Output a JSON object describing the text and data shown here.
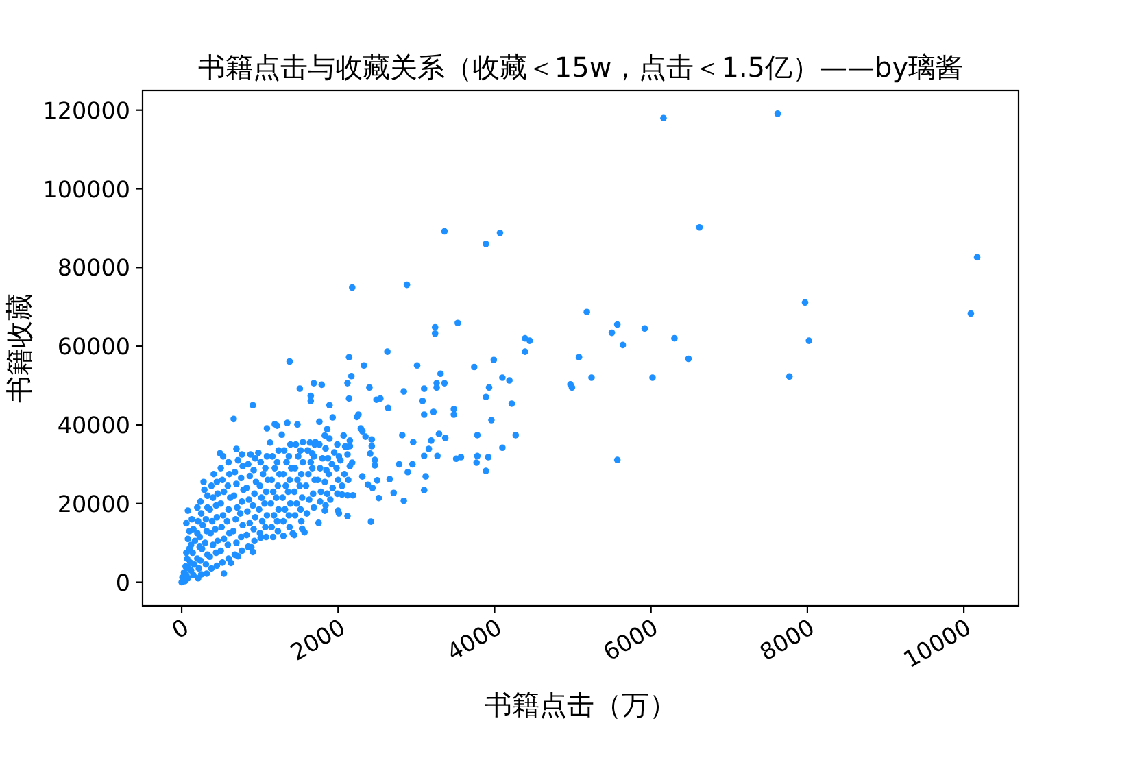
{
  "chart_data": {
    "type": "scatter",
    "title": "书籍点击与收藏关系（收藏＜15w，点击＜1.5亿）——by璃酱",
    "xlabel": "书籍点击（万）",
    "ylabel": "书籍收藏",
    "color": "#1e90ff",
    "marker": "circle",
    "xlim": [
      -500,
      10700
    ],
    "ylim": [
      -6000,
      125000
    ],
    "xticks": [
      0,
      2000,
      4000,
      6000,
      8000,
      10000
    ],
    "yticks": [
      0,
      20000,
      40000,
      60000,
      80000,
      100000,
      120000
    ],
    "x": [
      6160,
      7620,
      6620,
      10170,
      10090,
      7970,
      8020,
      7770,
      5180,
      5570,
      5500,
      5640,
      5920,
      6300,
      6480,
      6020,
      5080,
      5240,
      4970,
      4990,
      5570,
      3360,
      4070,
      3890,
      2880,
      2180,
      3530,
      3240,
      3240,
      4390,
      4450,
      4390,
      2630,
      2140,
      1380,
      3990,
      3010,
      2330,
      3740,
      4100,
      4190,
      3310,
      2170,
      2120,
      1690,
      1790,
      1510,
      2400,
      3100,
      3260,
      3260,
      3360,
      3930,
      2840,
      2140,
      1650,
      1650,
      2490,
      2540,
      3080,
      3890,
      4220,
      910,
      1890,
      2640,
      3220,
      3480,
      3480,
      2260,
      665,
      1760,
      1930,
      3960,
      1090,
      1220,
      1350,
      1480,
      2820,
      3780,
      4270,
      3290,
      3370,
      3190,
      2960,
      3100,
      3270,
      3510,
      3570,
      3780,
      3770,
      3920,
      4100,
      3890,
      2780,
      2890,
      3120,
      2660,
      3100,
      2710,
      2840,
      2520,
      2500,
      2380,
      2420,
      2310,
      2470,
      2470,
      2430,
      2430,
      2310,
      2150,
      2150,
      2120,
      2190,
      2120,
      2010,
      2000,
      1750,
      1440,
      1570,
      1170,
      910,
      540,
      3160,
      3100,
      2950,
      2440,
      2410,
      2350,
      2290,
      2240,
      2180,
      2050,
      2070,
      2110,
      1830,
      1860,
      1710,
      1550,
      1670,
      1540,
      1420,
      1300,
      1010,
      890,
      720,
      630,
      250,
      0,
      1830,
      1770,
      80,
      280,
      490,
      700,
      980,
      1190,
      30,
      10,
      50,
      80,
      90,
      70,
      100,
      80,
      150,
      160,
      140,
      170,
      150,
      130,
      240,
      260,
      230,
      270,
      250,
      240,
      290,
      380,
      360,
      400,
      370,
      390,
      360,
      400,
      380,
      410,
      520,
      500,
      540,
      510,
      530,
      500,
      540,
      520,
      500,
      530,
      680,
      700,
      660,
      690,
      710,
      670,
      700,
      680,
      720,
      850,
      830,
      870,
      840,
      860,
      830,
      870,
      850,
      880,
      1000,
      1030,
      990,
      1020,
      1000,
      1040,
      1010,
      1150,
      1180,
      1140,
      1170,
      1150,
      1190,
      1160,
      1130,
      1300,
      1320,
      1290,
      1330,
      1300,
      1340,
      1310,
      1280,
      1450,
      1470,
      1440,
      1480,
      1450,
      1490,
      1460,
      1600,
      1630,
      1590,
      1620,
      1650,
      1610,
      1640,
      1780,
      1740,
      1770,
      1800,
      1760,
      1900,
      1930,
      1880,
      1920,
      1950,
      1890,
      2050,
      2080,
      2030,
      2090,
      40,
      60,
      120,
      110,
      60,
      120,
      100,
      60,
      210,
      220,
      200,
      230,
      200,
      210,
      200,
      320,
      310,
      330,
      300,
      320,
      310,
      330,
      330,
      450,
      440,
      460,
      430,
      450,
      440,
      460,
      450,
      600,
      590,
      610,
      580,
      600,
      620,
      590,
      610,
      600,
      770,
      760,
      780,
      750,
      770,
      790,
      760,
      780,
      770,
      930,
      920,
      940,
      910,
      930,
      950,
      920,
      940,
      1080,
      1070,
      1090,
      1060,
      1080,
      1100,
      1070,
      1090,
      1230,
      1220,
      1240,
      1210,
      1230,
      1250,
      1220,
      1240,
      1380,
      1370,
      1390,
      1360,
      1380,
      1400,
      1370,
      1390,
      1530,
      1520,
      1540,
      1510,
      1530,
      1550,
      1520,
      1690,
      1680,
      1700,
      1670,
      1690,
      1700,
      1840,
      1860,
      1830,
      1850,
      1870,
      1840,
      1990,
      2000,
      1980,
      2010,
      1990,
      2130,
      2150,
      2120
    ],
    "values": [
      118000,
      119100,
      90200,
      82600,
      68300,
      71100,
      61400,
      52300,
      68700,
      65500,
      63400,
      60300,
      64500,
      62000,
      56800,
      52000,
      57200,
      52000,
      50300,
      49500,
      31100,
      89200,
      88800,
      86000,
      75600,
      74900,
      65900,
      64800,
      63200,
      62000,
      61400,
      58600,
      58600,
      57200,
      56100,
      56500,
      55100,
      55100,
      54700,
      52000,
      51300,
      53000,
      52400,
      50600,
      50600,
      50200,
      49200,
      49500,
      49200,
      50600,
      49500,
      50600,
      49500,
      48500,
      46700,
      47400,
      46100,
      46400,
      46700,
      46100,
      47100,
      45400,
      45000,
      45000,
      44300,
      43300,
      44000,
      42600,
      42600,
      41500,
      40800,
      41900,
      41200,
      39100,
      39800,
      40500,
      40100,
      37400,
      37400,
      37400,
      37700,
      36700,
      36000,
      35600,
      32100,
      32100,
      31400,
      31800,
      32100,
      30400,
      31800,
      34200,
      28300,
      30000,
      28000,
      26900,
      26200,
      23400,
      22700,
      20700,
      21400,
      25900,
      24800,
      15400,
      26900,
      29700,
      31100,
      36300,
      34600,
      38400,
      36000,
      34600,
      22100,
      22100,
      16800,
      17500,
      18200,
      15100,
      12000,
      12700,
      11500,
      7700,
      2200,
      33900,
      42600,
      30000,
      24000,
      32700,
      37000,
      39100,
      42000,
      30400,
      22300,
      37300,
      34400,
      37300,
      38900,
      35600,
      35600,
      32700,
      13600,
      12400,
      11800,
      11300,
      8900,
      6600,
      4900,
      2000,
      0,
      18200,
      20500,
      18200,
      25500,
      32800,
      33900,
      32900,
      40200,
      2500,
      1200,
      4000,
      1000,
      3500,
      6000,
      8500,
      11000,
      1800,
      4500,
      7500,
      10500,
      13500,
      16000,
      5500,
      8500,
      11500,
      14500,
      17500,
      20500,
      23500,
      3500,
      6500,
      9500,
      12500,
      15500,
      18500,
      21500,
      24500,
      27500,
      5000,
      8000,
      11000,
      14000,
      17000,
      20000,
      23000,
      26000,
      29000,
      32000,
      7000,
      10000,
      13000,
      16000,
      19000,
      22000,
      25000,
      28000,
      31000,
      9000,
      12000,
      15000,
      18000,
      21000,
      24000,
      27000,
      30000,
      32500,
      12500,
      15500,
      18500,
      21500,
      24500,
      27500,
      30500,
      14000,
      17000,
      20000,
      23000,
      26000,
      29000,
      32000,
      35500,
      15500,
      18500,
      21500,
      24500,
      27500,
      30500,
      33500,
      37500,
      17000,
      20000,
      23000,
      26000,
      29000,
      32000,
      35000,
      17500,
      21000,
      24500,
      27500,
      30500,
      33500,
      35500,
      23000,
      26000,
      29000,
      31500,
      35000,
      21000,
      24000,
      27500,
      30000,
      33000,
      36500,
      24500,
      27500,
      31000,
      34500,
      300,
      1800,
      3000,
      5000,
      7500,
      9500,
      13000,
      15000,
      1000,
      3500,
      6000,
      9000,
      12500,
      15500,
      19000,
      2200,
      4500,
      7000,
      10000,
      13000,
      16000,
      19000,
      22000,
      4200,
      7500,
      10500,
      13500,
      16500,
      19500,
      22500,
      25500,
      6000,
      9500,
      12500,
      15500,
      18500,
      21500,
      24500,
      27500,
      30500,
      8000,
      11500,
      14500,
      17500,
      20500,
      23500,
      26500,
      29500,
      32500,
      10500,
      13500,
      16500,
      19500,
      22500,
      25500,
      28500,
      31500,
      11500,
      14000,
      17000,
      20000,
      23000,
      26000,
      29000,
      32000,
      13000,
      15500,
      18500,
      21500,
      24500,
      27500,
      30500,
      33500,
      14000,
      17000,
      20000,
      23000,
      26000,
      29000,
      32000,
      35000,
      15500,
      18500,
      21500,
      24500,
      27500,
      30500,
      33500,
      19000,
      22500,
      26000,
      29000,
      32000,
      35000,
      19500,
      22500,
      25500,
      28500,
      31500,
      34000,
      22500,
      26000,
      29000,
      32000,
      35000,
      26000,
      29500,
      32500
    ]
  }
}
